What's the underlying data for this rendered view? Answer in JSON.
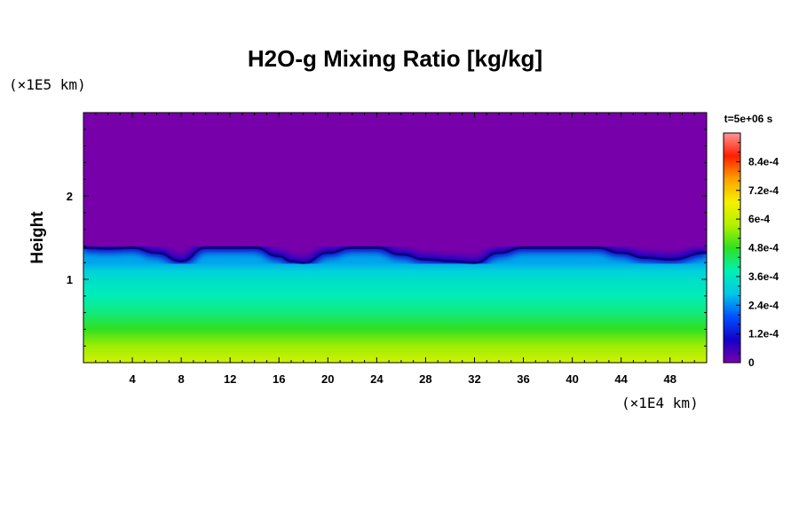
{
  "chart_data": {
    "type": "heatmap",
    "title": "H2O-g Mixing Ratio [kg/kg]",
    "xlabel": "",
    "ylabel": "Height",
    "x_unit": "(×1E4 km)",
    "y_unit": "(×1E5 km)",
    "time_label": "t=5e+06 s",
    "xlim": [
      0,
      51
    ],
    "ylim": [
      0,
      3
    ],
    "x_ticks": [
      4,
      8,
      12,
      16,
      20,
      24,
      28,
      32,
      36,
      40,
      44,
      48
    ],
    "y_ticks": [
      1,
      2
    ],
    "x_minor_step": 1,
    "y_minor_step": 0.2,
    "colorbar": {
      "min": 0,
      "max": 0.00096,
      "ticks": [
        0,
        0.00012,
        0.00024,
        0.00036,
        0.00048,
        0.0006,
        0.00072,
        0.00084
      ],
      "tick_labels": [
        "0",
        "1.2e-4",
        "2.4e-4",
        "3.6e-4",
        "4.8e-4",
        "6e-4",
        "7.2e-4",
        "8.4e-4"
      ],
      "colors": [
        "#7800aa",
        "#1400c8",
        "#0050ff",
        "#00c8e6",
        "#00f0b4",
        "#30e020",
        "#b4f000",
        "#f5f000",
        "#ffa000",
        "#ff1e00",
        "#ff9696"
      ]
    },
    "background_value": 0,
    "profile": {
      "height": [
        0,
        0.2,
        0.4,
        0.6,
        0.8,
        1.0,
        1.1,
        1.2
      ],
      "values": [
        0.00062,
        0.00056,
        0.00048,
        0.00042,
        0.00038,
        0.00034,
        0.00031,
        0.00026
      ]
    },
    "interface_height_km": {
      "x": [
        0,
        2,
        4,
        6,
        8,
        10,
        12,
        14,
        16,
        17,
        18,
        20,
        22,
        24,
        26,
        28,
        30,
        32,
        34,
        36,
        38,
        40,
        42,
        44,
        46,
        48,
        51
      ],
      "y": [
        1.38,
        1.37,
        1.38,
        1.32,
        1.22,
        1.38,
        1.38,
        1.38,
        1.28,
        1.22,
        1.2,
        1.32,
        1.38,
        1.38,
        1.3,
        1.24,
        1.22,
        1.2,
        1.32,
        1.38,
        1.38,
        1.38,
        1.38,
        1.32,
        1.26,
        1.24,
        1.32
      ]
    }
  }
}
